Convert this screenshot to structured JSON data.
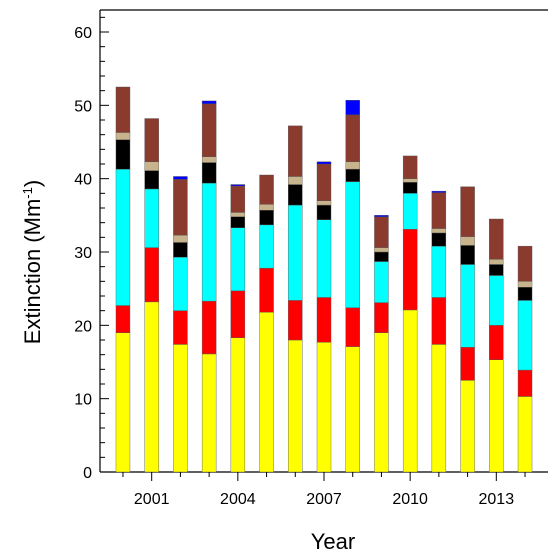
{
  "chart_data": {
    "type": "bar",
    "stacked": true,
    "title": "",
    "xlabel": "Year",
    "ylabel_main": "Extinction (Mm",
    "ylabel_sup": "-1",
    "ylabel_close": ")",
    "ylim": [
      0,
      63
    ],
    "yticks": [
      "0",
      "10",
      "20",
      "30",
      "40",
      "50",
      "60"
    ],
    "ytick_values": [
      0,
      10,
      20,
      30,
      40,
      50,
      60
    ],
    "xtick_labels": [
      "2001",
      "2004",
      "2007",
      "2010",
      "2013"
    ],
    "xtick_years": [
      2001,
      2004,
      2007,
      2010,
      2013
    ],
    "xlim": [
      1999.2,
      2014.8
    ],
    "categories": [
      2000,
      2001,
      2002,
      2003,
      2004,
      2005,
      2006,
      2007,
      2008,
      2009,
      2010,
      2011,
      2012,
      2013,
      2014
    ],
    "series": [
      {
        "color": "#ffff00",
        "values": [
          19.0,
          23.2,
          17.4,
          16.1,
          18.3,
          21.8,
          18.0,
          17.7,
          17.1,
          19.0,
          22.1,
          17.4,
          12.5,
          15.3,
          10.3
        ]
      },
      {
        "color": "#ff0000",
        "values": [
          3.7,
          7.4,
          4.6,
          7.2,
          6.4,
          6.0,
          5.4,
          6.1,
          5.3,
          4.1,
          11.0,
          6.4,
          4.5,
          4.7,
          3.6
        ]
      },
      {
        "color": "#00ffff",
        "values": [
          18.6,
          8.0,
          7.3,
          16.1,
          8.6,
          5.9,
          13.0,
          10.6,
          17.2,
          5.6,
          4.9,
          7.0,
          11.3,
          6.8,
          9.5
        ]
      },
      {
        "color": "#000000",
        "values": [
          4.0,
          2.5,
          2.0,
          2.8,
          1.5,
          2.0,
          2.8,
          2.0,
          1.7,
          1.3,
          1.5,
          1.8,
          2.6,
          1.5,
          1.8
        ]
      },
      {
        "color": "#c8b48c",
        "values": [
          1.0,
          1.2,
          1.0,
          0.8,
          0.6,
          0.8,
          1.1,
          0.6,
          1.0,
          0.6,
          0.5,
          0.6,
          1.2,
          0.7,
          0.8
        ]
      },
      {
        "color": "#8b3a2e",
        "values": [
          6.2,
          5.9,
          7.6,
          7.2,
          3.6,
          4.0,
          6.9,
          5.0,
          6.4,
          4.2,
          3.1,
          4.9,
          6.8,
          5.5,
          4.8
        ]
      },
      {
        "color": "#0000ff",
        "values": [
          0,
          0,
          0.4,
          0.4,
          0.2,
          0,
          0,
          0.3,
          2.0,
          0.2,
          0,
          0.2,
          0,
          0,
          0
        ]
      }
    ]
  }
}
